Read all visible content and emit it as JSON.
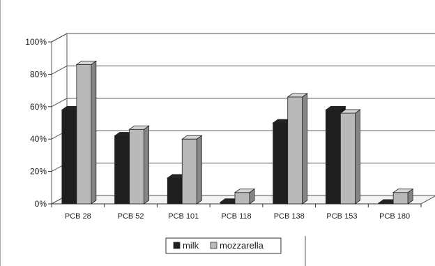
{
  "chart_data": {
    "type": "bar",
    "categories": [
      "PCB 28",
      "PCB 52",
      "PCB 101",
      "PCB 118",
      "PCB 138",
      "PCB 153",
      "PCB 180"
    ],
    "series": [
      {
        "name": "milk",
        "values": [
          58,
          42,
          16,
          1,
          50,
          58,
          0.5
        ],
        "color": "#1e1e1e"
      },
      {
        "name": "mozzarella",
        "values": [
          86,
          46,
          40,
          7,
          66,
          56,
          7
        ],
        "color": "#b9b9b9"
      }
    ],
    "yticks": [
      "0%",
      "20%",
      "40%",
      "60%",
      "80%",
      "100%"
    ],
    "ylim": [
      0,
      100
    ],
    "grid": true,
    "legend_position": "bottom",
    "three_d": true
  }
}
